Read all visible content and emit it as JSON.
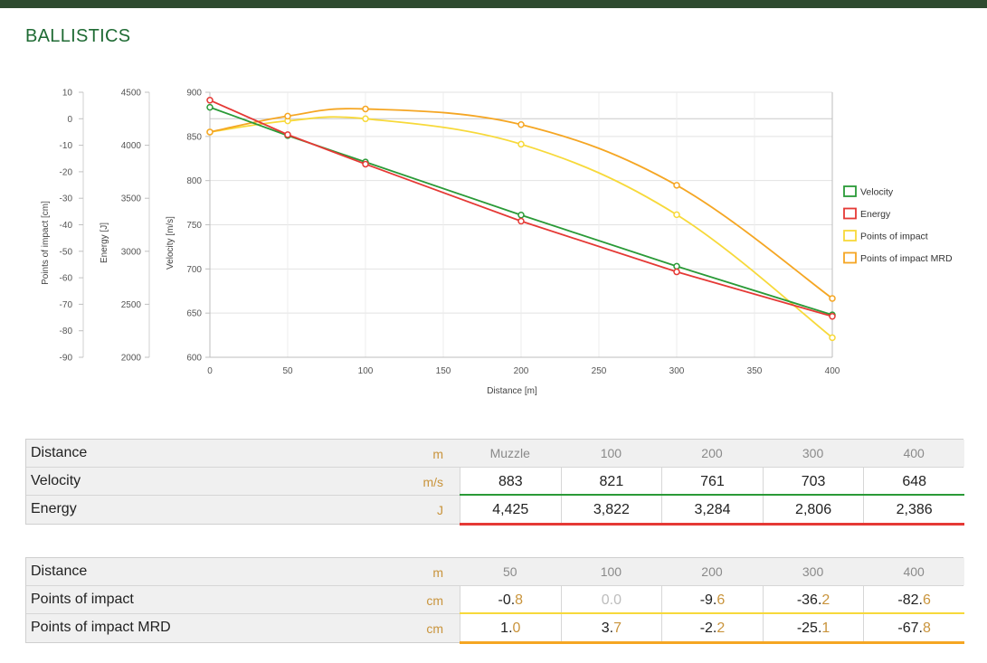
{
  "page": {
    "title": "BALLISTICS"
  },
  "colors": {
    "velocity": "#2a9a37",
    "energy": "#e53935",
    "poi": "#f7d93a",
    "poi_mrd": "#f5a623"
  },
  "chart_data": {
    "type": "line",
    "xlabel": "Distance [m]",
    "x_ticks": [
      0,
      50,
      100,
      150,
      200,
      250,
      300,
      350,
      400
    ],
    "xlim": [
      0,
      400
    ],
    "axes": {
      "poi": {
        "label": "Points of impact [cm]",
        "ticks": [
          10,
          0,
          -10,
          -20,
          -30,
          -40,
          -50,
          -60,
          -70,
          -80,
          -90
        ],
        "ylim": [
          -90,
          10
        ]
      },
      "energy": {
        "label": "Energy [J]",
        "ticks": [
          4500,
          4000,
          3500,
          3000,
          2500,
          2000
        ],
        "ylim": [
          2000,
          4500
        ]
      },
      "velocity": {
        "label": "Velocity [m/s]",
        "ticks": [
          900,
          850,
          800,
          750,
          700,
          650,
          600
        ],
        "ylim": [
          600,
          900
        ]
      }
    },
    "legend_position": "right",
    "series": [
      {
        "name": "Velocity",
        "axis": "velocity",
        "color": "#2a9a37",
        "x": [
          0,
          50,
          100,
          200,
          300,
          400
        ],
        "values": [
          883,
          851,
          821,
          761,
          703,
          648
        ]
      },
      {
        "name": "Energy",
        "axis": "energy",
        "color": "#e53935",
        "x": [
          0,
          50,
          100,
          200,
          300,
          400
        ],
        "values": [
          4425,
          4100,
          3822,
          3284,
          2806,
          2386
        ]
      },
      {
        "name": "Points of impact",
        "axis": "poi",
        "color": "#f7d93a",
        "x": [
          0,
          50,
          100,
          200,
          300,
          400
        ],
        "values": [
          -5,
          -0.8,
          0,
          -9.6,
          -36.2,
          -82.6
        ]
      },
      {
        "name": "Points of impact MRD",
        "axis": "poi",
        "color": "#f5a623",
        "x": [
          0,
          50,
          100,
          200,
          300,
          400
        ],
        "values": [
          -5,
          1.0,
          3.7,
          -2.2,
          -25.1,
          -67.8
        ]
      }
    ]
  },
  "table1": {
    "rows": [
      {
        "label": "Distance",
        "unit": "m",
        "values": [
          {
            "i": "Muzzle",
            "d": ""
          },
          {
            "i": "100",
            "d": ""
          },
          {
            "i": "200",
            "d": ""
          },
          {
            "i": "300",
            "d": ""
          },
          {
            "i": "400",
            "d": ""
          }
        ]
      },
      {
        "label": "Velocity",
        "unit": "m/s",
        "values": [
          {
            "i": "883",
            "d": ""
          },
          {
            "i": "821",
            "d": ""
          },
          {
            "i": "761",
            "d": ""
          },
          {
            "i": "703",
            "d": ""
          },
          {
            "i": "648",
            "d": ""
          }
        ]
      },
      {
        "label": "Energy",
        "unit": "J",
        "values": [
          {
            "i": "4,425",
            "d": ""
          },
          {
            "i": "3,822",
            "d": ""
          },
          {
            "i": "3,284",
            "d": ""
          },
          {
            "i": "2,806",
            "d": ""
          },
          {
            "i": "2,386",
            "d": ""
          }
        ]
      }
    ]
  },
  "table2": {
    "rows": [
      {
        "label": "Distance",
        "unit": "m",
        "values": [
          {
            "i": "50",
            "d": ""
          },
          {
            "i": "100",
            "d": ""
          },
          {
            "i": "200",
            "d": ""
          },
          {
            "i": "300",
            "d": ""
          },
          {
            "i": "400",
            "d": ""
          }
        ]
      },
      {
        "label": "Points of impact",
        "unit": "cm",
        "values": [
          {
            "i": "-0.",
            "d": "8"
          },
          {
            "i": "0.0",
            "d": "",
            "zero": true
          },
          {
            "i": "-9.",
            "d": "6"
          },
          {
            "i": "-36.",
            "d": "2"
          },
          {
            "i": "-82.",
            "d": "6"
          }
        ]
      },
      {
        "label": "Points of impact MRD",
        "unit": "cm",
        "values": [
          {
            "i": "1.",
            "d": "0"
          },
          {
            "i": "3.",
            "d": "7"
          },
          {
            "i": "-2.",
            "d": "2"
          },
          {
            "i": "-25.",
            "d": "1"
          },
          {
            "i": "-67.",
            "d": "8"
          }
        ]
      }
    ]
  }
}
